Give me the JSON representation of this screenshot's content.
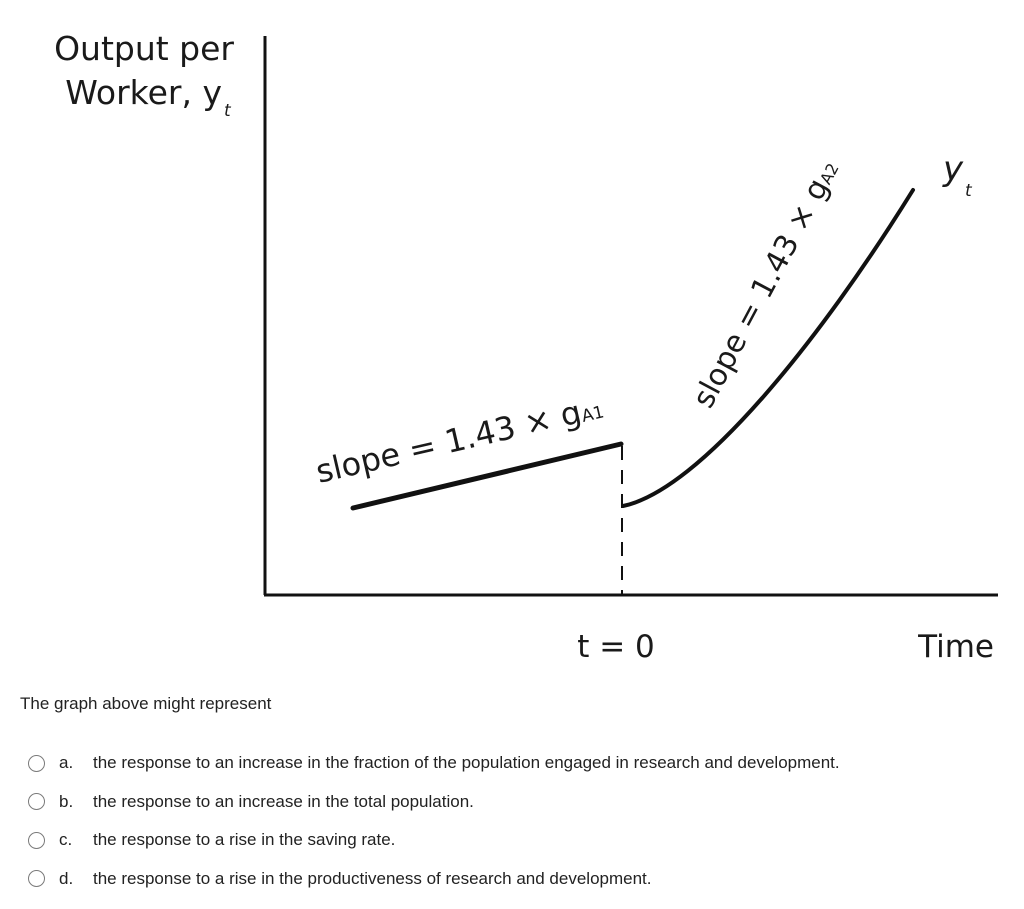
{
  "figure": {
    "y_label_line1": "Output per",
    "y_label_line2": "Worker, y",
    "y_label_sub": "t",
    "x_label": "Time",
    "t0_label": "t = 0",
    "slope1_text": "slope = 1.43 × g",
    "slope1_sub": "A1",
    "slope2_text": "slope = 1.43 × g",
    "slope2_sub": "A2",
    "curve_label": "y",
    "curve_label_sub": "t",
    "colors": {
      "curve": "#111111",
      "axis": "#111111"
    }
  },
  "question": "The graph above might represent",
  "options": [
    {
      "letter": "a.",
      "text": "the response to an increase in the fraction of the population engaged in research and development."
    },
    {
      "letter": "b.",
      "text": "the response to an increase in the total population."
    },
    {
      "letter": "c.",
      "text": "the response to a rise in the saving rate."
    },
    {
      "letter": "d.",
      "text": "the response to a rise in the productiveness of research and development."
    }
  ]
}
